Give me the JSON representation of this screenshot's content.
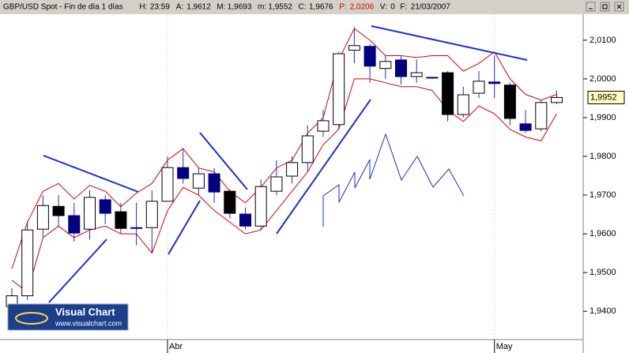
{
  "header": {
    "title": "GBP/USD Spot - Fin de día 1 días",
    "items": [
      {
        "label": "H:",
        "value": "23:59"
      },
      {
        "label": "A:",
        "value": "1,9612"
      },
      {
        "label": "M:",
        "value": "1,9693"
      },
      {
        "label": "m:",
        "value": "1,9552"
      },
      {
        "label": "C:",
        "value": "1,9676"
      },
      {
        "label": "P:",
        "value": "2,0206"
      },
      {
        "label": "V:",
        "value": "0"
      },
      {
        "label": "F:",
        "value": "21/03/2007"
      }
    ]
  },
  "logo": {
    "title": "Visual Chart",
    "url": "www.visualchart.com"
  },
  "chart_data": {
    "type": "candlestick",
    "categories": [
      null,
      null,
      null,
      null,
      null,
      null,
      null,
      null,
      null,
      null,
      "Abr",
      null,
      null,
      null,
      null,
      null,
      null,
      null,
      null,
      null,
      null,
      null,
      null,
      null,
      null,
      null,
      null,
      null,
      null,
      null,
      null,
      "May",
      null,
      null,
      null,
      null
    ],
    "open": [
      1.9412,
      1.944,
      1.9612,
      1.9671,
      1.9647,
      1.9612,
      1.9688,
      1.9657,
      1.9616,
      1.9616,
      1.9684,
      1.9771,
      1.9718,
      1.9755,
      1.971,
      1.9651,
      1.962,
      1.971,
      1.9749,
      1.9784,
      1.9865,
      1.9882,
      2.0074,
      2.0084,
      2.0027,
      2.0049,
      2.0006,
      2.0004,
      2.0016,
      1.9908,
      1.9963,
      1.9992,
      1.9984,
      1.9884,
      1.9871,
      1.9939
    ],
    "high": [
      1.946,
      1.9633,
      1.97,
      1.97,
      1.968,
      1.9712,
      1.97,
      1.968,
      1.968,
      1.9712,
      1.98,
      1.982,
      1.977,
      1.977,
      1.9715,
      1.9668,
      1.974,
      1.979,
      1.98,
      1.988,
      1.992,
      2.007,
      2.0134,
      2.009,
      2.006,
      2.006,
      2.005,
      2.0005,
      2.002,
      1.998,
      2.002,
      2.006,
      1.999,
      1.992,
      1.9945,
      1.997
    ],
    "low": [
      1.94,
      1.9429,
      1.959,
      1.962,
      1.958,
      1.9585,
      1.9625,
      1.96,
      1.957,
      1.955,
      1.969,
      1.973,
      1.97,
      1.968,
      1.964,
      1.9612,
      1.961,
      1.97,
      1.973,
      1.976,
      1.985,
      1.987,
      2.004,
      1.999,
      2.0,
      1.9985,
      1.999,
      2.0,
      1.989,
      1.99,
      1.995,
      1.995,
      1.988,
      1.986,
      1.9865,
      1.9935
    ],
    "close": [
      1.944,
      1.961,
      1.9673,
      1.9647,
      1.9602,
      1.9694,
      1.9653,
      1.9614,
      1.9614,
      1.9684,
      1.9771,
      1.9743,
      1.9755,
      1.9708,
      1.9653,
      1.962,
      1.9722,
      1.9747,
      1.9784,
      1.9853,
      1.9892,
      2.0065,
      2.0086,
      2.0033,
      2.0045,
      2.0006,
      2.0016,
      2.0002,
      1.9908,
      1.9959,
      1.9994,
      1.9988,
      1.9898,
      1.9867,
      1.9939,
      1.9952
    ],
    "colors": [
      "#ffffff",
      "#ffffff",
      "#ffffff",
      "#000000",
      "#000080",
      "#ffffff",
      "#000080",
      "#000000",
      "#000080",
      "#ffffff",
      "#ffffff",
      "#000080",
      "#ffffff",
      "#000080",
      "#000000",
      "#000080",
      "#ffffff",
      "#ffffff",
      "#ffffff",
      "#ffffff",
      "#ffffff",
      "#ffffff",
      "#ffffff",
      "#000080",
      "#ffffff",
      "#000080",
      "#ffffff",
      "#000080",
      "#000000",
      "#ffffff",
      "#ffffff",
      "#000080",
      "#000000",
      "#000080",
      "#ffffff",
      "#ffffff"
    ],
    "bands": [
      {
        "color": "#e00000",
        "values": [
          1.951,
          1.963,
          1.971,
          1.973,
          1.969,
          1.9725,
          1.971,
          1.967,
          1.9705,
          1.973,
          1.979,
          1.982,
          1.977,
          1.976,
          1.971,
          1.968,
          1.972,
          1.977,
          1.979,
          1.986,
          1.99,
          2.005,
          2.013,
          2.01,
          2.006,
          2.006,
          2.0055,
          2.006,
          2.006,
          2.002,
          2.004,
          2.007,
          2.0,
          1.996,
          1.9945,
          1.996
        ]
      },
      {
        "color": "#e00000",
        "values": [
          1.948,
          1.945,
          1.959,
          1.962,
          1.959,
          1.961,
          1.962,
          1.96,
          1.96,
          1.955,
          1.966,
          1.972,
          1.97,
          1.966,
          1.963,
          1.96,
          1.961,
          1.966,
          1.971,
          1.976,
          1.983,
          1.987,
          2.0,
          2.0,
          1.999,
          1.998,
          1.998,
          1.997,
          1.992,
          1.989,
          1.993,
          1.991,
          1.987,
          1.985,
          1.984,
          1.991
        ]
      }
    ],
    "ylim": [
      1.9327,
      2.0167
    ],
    "yticks": [
      {
        "value": 1.94,
        "label": "1,9400"
      },
      {
        "value": 1.95,
        "label": "1,9500"
      },
      {
        "value": 1.96,
        "label": "1,9600"
      },
      {
        "value": 1.97,
        "label": "1,9700"
      },
      {
        "value": 1.98,
        "label": "1,9800"
      },
      {
        "value": 1.99,
        "label": "1,9900"
      },
      {
        "value": 2.0,
        "label": "2,0000"
      },
      {
        "value": 2.01,
        "label": "2,0100"
      }
    ],
    "last_price": {
      "value": 1.9952,
      "label": "1,9952"
    }
  }
}
